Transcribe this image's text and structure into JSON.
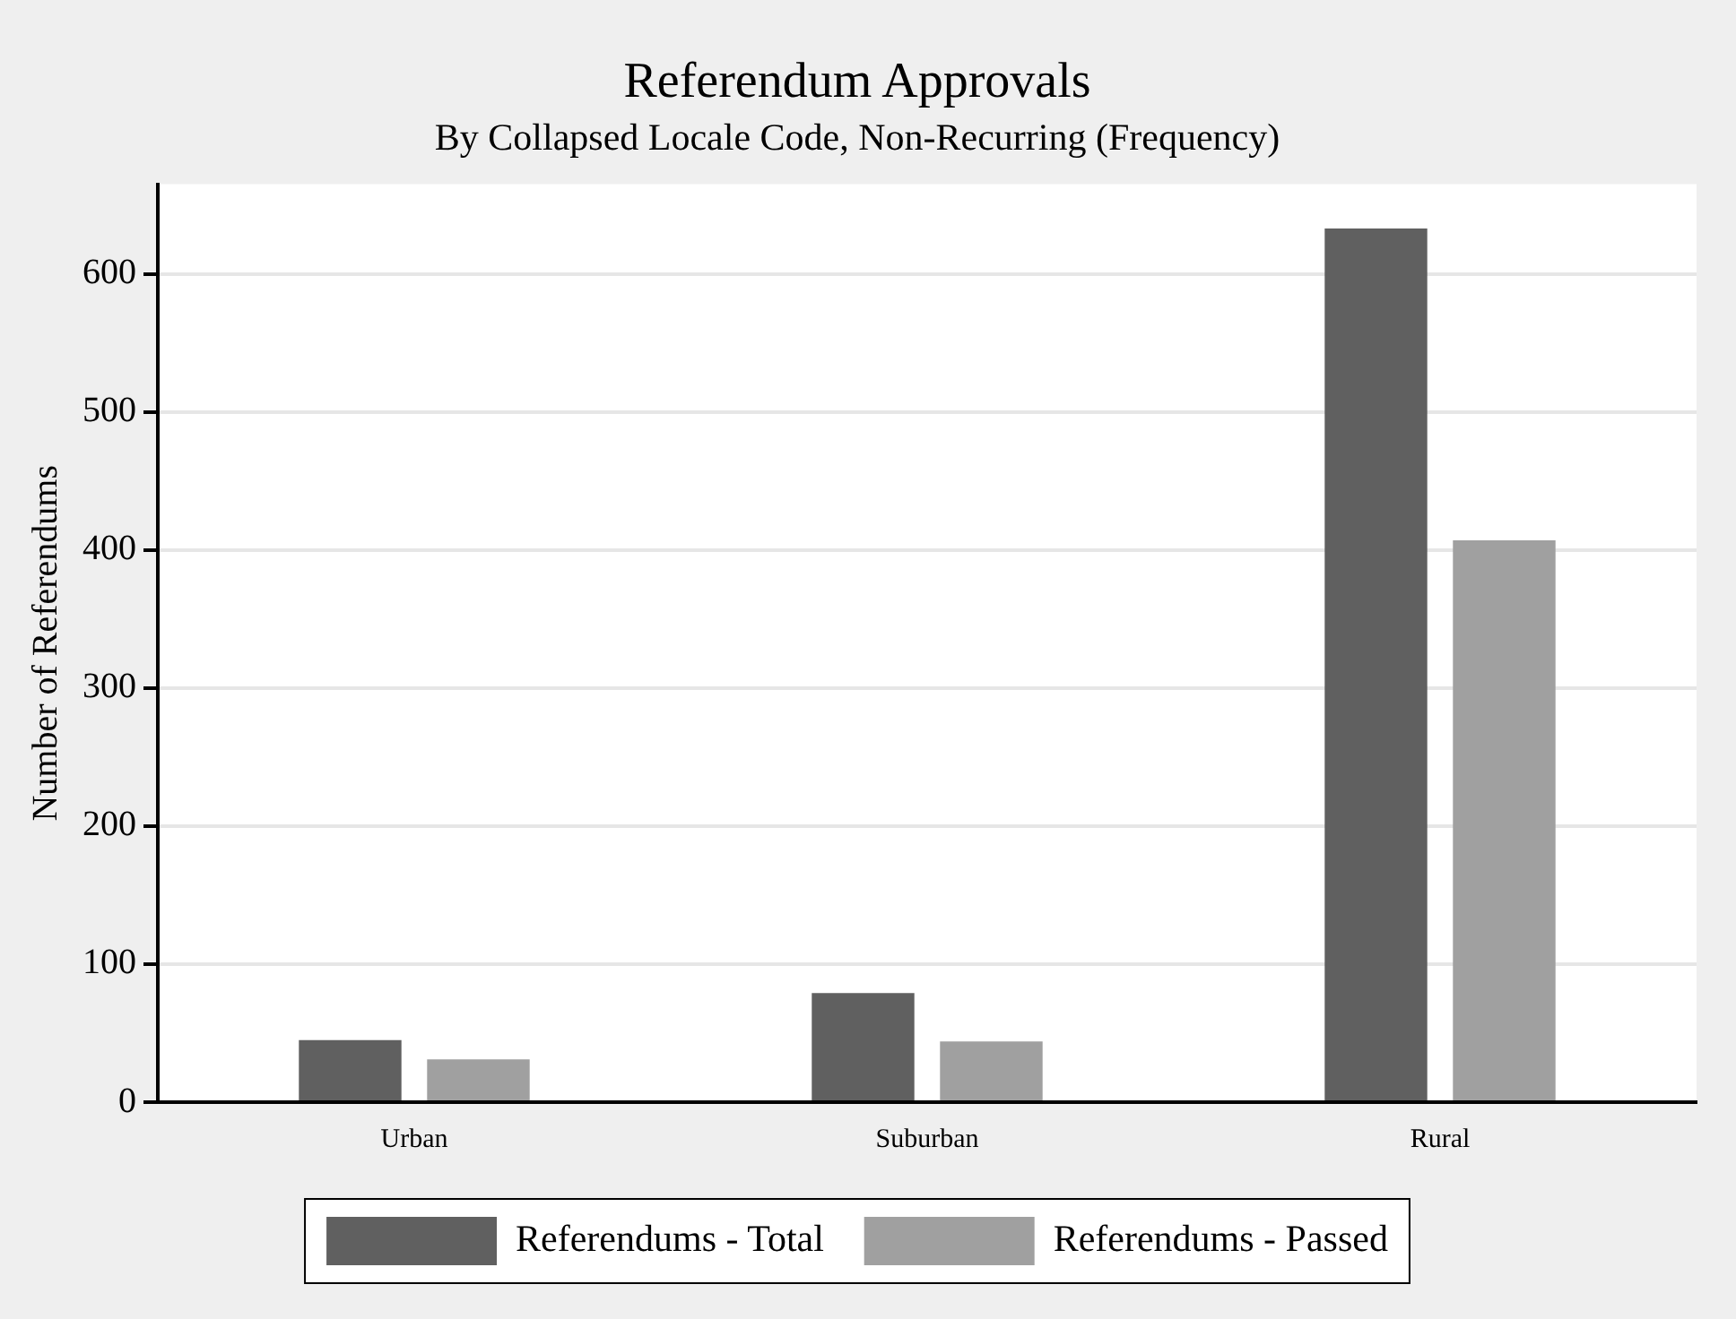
{
  "chart_data": {
    "type": "bar",
    "title": "Referendum Approvals",
    "subtitle": "By Collapsed Locale Code, Non-Recurring (Frequency)",
    "ylabel": "Number of Referendums",
    "categories": [
      "Urban",
      "Suburban",
      "Rural"
    ],
    "series": [
      {
        "name": "Referendums - Total",
        "color": "#606060",
        "values": [
          45,
          79,
          633
        ]
      },
      {
        "name": "Referendums - Passed",
        "color": "#a0a0a0",
        "values": [
          31,
          44,
          407
        ]
      }
    ],
    "ylim": [
      0,
      665
    ],
    "yticks": [
      0,
      100,
      200,
      300,
      400,
      500,
      600
    ],
    "grid": "y",
    "legend": "bottom"
  }
}
